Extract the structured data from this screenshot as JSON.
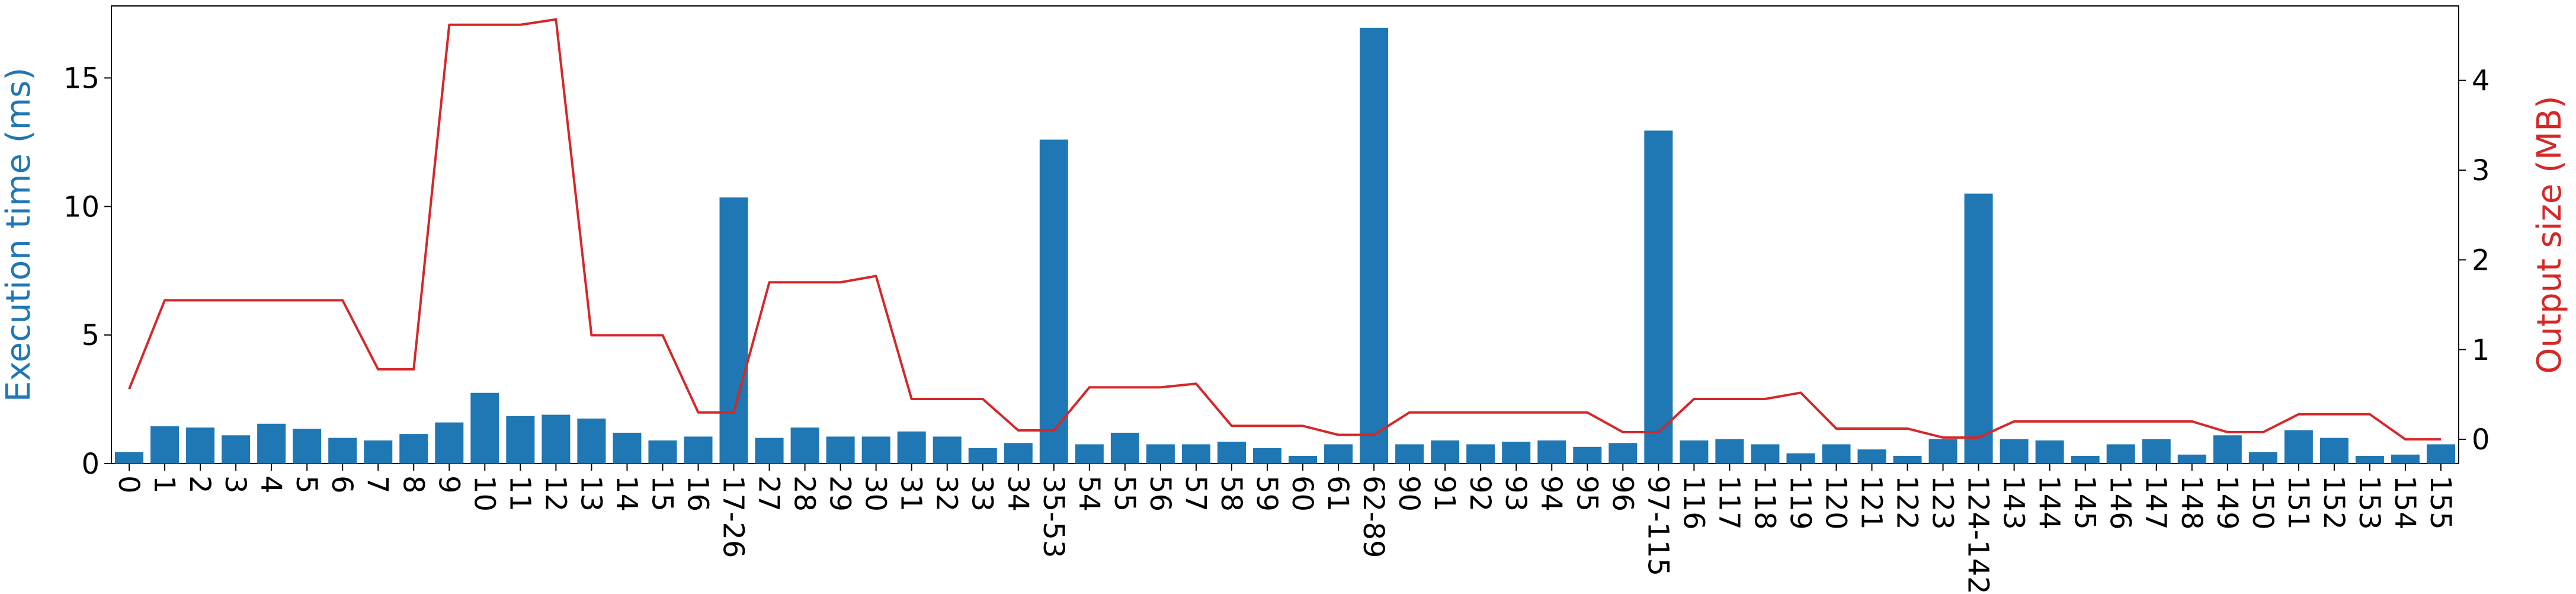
{
  "chart_data": {
    "type": "bar",
    "categories": [
      "0",
      "1",
      "2",
      "3",
      "4",
      "5",
      "6",
      "7",
      "8",
      "9",
      "10",
      "11",
      "12",
      "13",
      "14",
      "15",
      "16",
      "17-26",
      "27",
      "28",
      "29",
      "30",
      "31",
      "32",
      "33",
      "34",
      "35-53",
      "54",
      "55",
      "56",
      "57",
      "58",
      "59",
      "60",
      "61",
      "62-89",
      "90",
      "91",
      "92",
      "93",
      "94",
      "95",
      "96",
      "97-115",
      "116",
      "117",
      "118",
      "119",
      "120",
      "121",
      "122",
      "123",
      "124-142",
      "143",
      "144",
      "145",
      "146",
      "147",
      "148",
      "149",
      "150",
      "151",
      "152",
      "153",
      "154",
      "155"
    ],
    "series": [
      {
        "axis": "left",
        "kind": "bar",
        "color": "#1f77b4",
        "values": [
          0.45,
          1.45,
          1.4,
          1.1,
          1.55,
          1.35,
          1.0,
          0.9,
          1.15,
          1.6,
          2.75,
          1.85,
          1.9,
          1.75,
          1.2,
          0.9,
          1.05,
          10.35,
          1.0,
          1.4,
          1.05,
          1.05,
          1.25,
          1.05,
          0.6,
          0.8,
          12.6,
          0.75,
          1.2,
          0.75,
          0.75,
          0.85,
          0.6,
          0.3,
          0.75,
          16.95,
          0.75,
          0.9,
          0.75,
          0.85,
          0.9,
          0.65,
          0.8,
          12.95,
          0.9,
          0.95,
          0.75,
          0.4,
          0.75,
          0.55,
          0.3,
          0.95,
          10.5,
          0.95,
          0.9,
          0.3,
          0.75,
          0.95,
          0.35,
          1.1,
          0.45,
          1.3,
          1.0,
          0.3,
          0.35,
          0.75
        ]
      },
      {
        "axis": "right",
        "kind": "line",
        "color": "#d62728",
        "values": [
          0.56,
          1.55,
          1.55,
          1.55,
          1.55,
          1.55,
          1.55,
          0.78,
          0.78,
          4.62,
          4.62,
          4.62,
          4.68,
          1.16,
          1.16,
          1.16,
          0.3,
          0.3,
          1.75,
          1.75,
          1.75,
          1.82,
          0.45,
          0.45,
          0.45,
          0.1,
          0.1,
          0.58,
          0.58,
          0.58,
          0.62,
          0.15,
          0.15,
          0.15,
          0.05,
          0.05,
          0.3,
          0.3,
          0.3,
          0.3,
          0.3,
          0.3,
          0.08,
          0.08,
          0.45,
          0.45,
          0.45,
          0.52,
          0.12,
          0.12,
          0.12,
          0.02,
          0.02,
          0.2,
          0.2,
          0.2,
          0.2,
          0.2,
          0.2,
          0.08,
          0.08,
          0.28,
          0.28,
          0.28,
          0.0,
          0.0
        ]
      }
    ],
    "ylabel": "Execution time (ms)",
    "ylabel_right": "Output size (MB)",
    "ylim": [
      0,
      17.8
    ],
    "ylim_right": [
      -0.27,
      4.83
    ],
    "yticks": [
      0,
      5,
      10,
      15
    ],
    "yticks_right": [
      0,
      1,
      2,
      3,
      4
    ],
    "xtick_rotation": "vertical",
    "grid": false,
    "legend": "none"
  }
}
